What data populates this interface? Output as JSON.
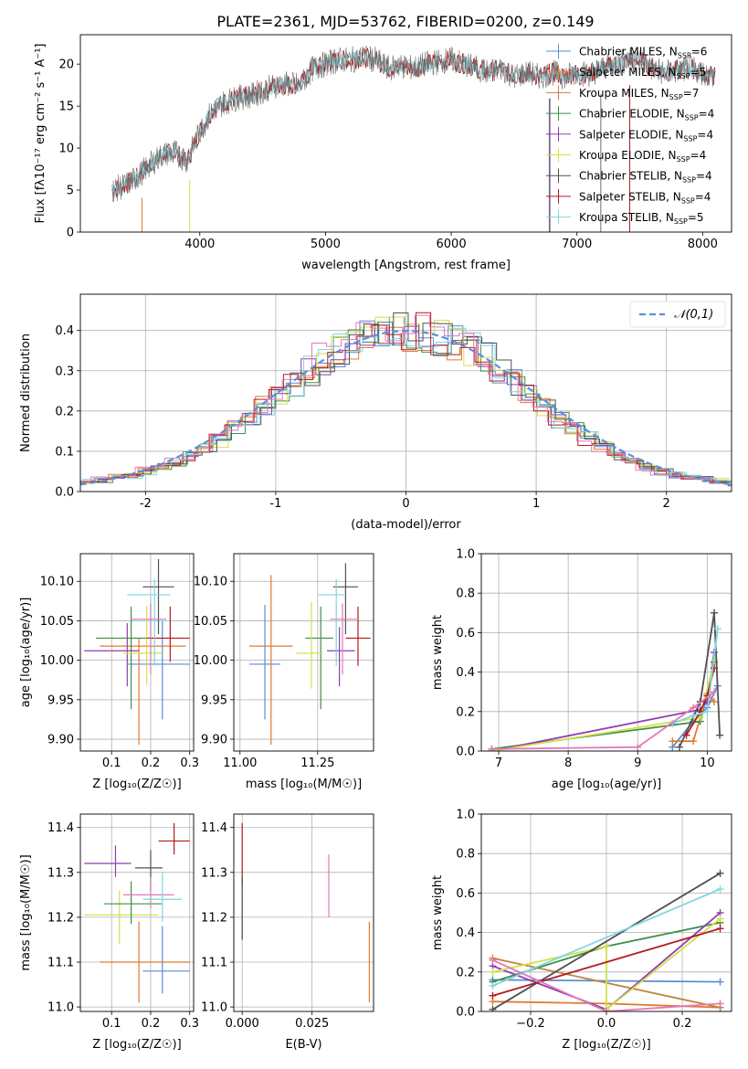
{
  "figure_title": "PLATE=2361, MJD=53762, FIBERID=0200, z=0.149",
  "models": [
    {
      "name": "Chabrier MILES",
      "nssp": "6",
      "color": "#5b8cd9"
    },
    {
      "name": "Salpeter MILES",
      "nssp": "5",
      "color": "#e07b30"
    },
    {
      "name": "Kroupa MILES",
      "nssp": "7",
      "color": "#c0833c"
    },
    {
      "name": "Chabrier ELODIE",
      "nssp": "4",
      "color": "#3e8e47"
    },
    {
      "name": "Salpeter ELODIE",
      "nssp": "4",
      "color": "#8e3db0"
    },
    {
      "name": "Kroupa ELODIE",
      "nssp": "4",
      "color": "#d6e048"
    },
    {
      "name": "Chabrier STELIB",
      "nssp": "4",
      "color": "#505050"
    },
    {
      "name": "Salpeter STELIB",
      "nssp": "4",
      "color": "#b01c20"
    },
    {
      "name": "Kroupa STELIB",
      "nssp": "5",
      "color": "#7fd6df"
    }
  ],
  "nssp_prefix": ", N",
  "nssp_sub": "SSP",
  "colors": {
    "spectrum": "#6f6f6f",
    "gaussian": "#5b8ee0",
    "pink": "#e07ab6",
    "grid": "#b0b0b0"
  },
  "chart_data": [
    {
      "id": "spectrum",
      "type": "line",
      "title": "PLATE=2361, MJD=53762, FIBERID=0200, z=0.149",
      "xlabel": "wavelength [Angstrom, rest frame]",
      "ylabel": "Flux [f$_\\lambda$10$^{-17}$ erg cm$^{-2}$ s$^{-1}$ A$^{-1}$]",
      "ylabel_display": "Flux [fλ10⁻¹⁷ erg cm⁻² s⁻¹ A⁻¹]",
      "xlim": [
        3050,
        8230
      ],
      "ylim": [
        0,
        23.5
      ],
      "xticks": [
        4000,
        5000,
        6000,
        7000,
        8000
      ],
      "yticks": [
        0,
        5,
        10,
        15,
        20
      ],
      "grid": false,
      "legend": "upper right",
      "spectrum_anchors": {
        "x": [
          3300,
          3400,
          3500,
          3600,
          3700,
          3800,
          3900,
          4000,
          4100,
          4200,
          4300,
          4400,
          4500,
          4600,
          4700,
          4800,
          4900,
          5000,
          5100,
          5200,
          5300,
          5400,
          5500,
          5600,
          5700,
          5800,
          5900,
          6000,
          6100,
          6200,
          6300,
          6400,
          6500,
          6600,
          6700,
          6800,
          6900,
          7000,
          7100,
          7200,
          7300,
          7400,
          7500,
          7600,
          7700,
          7800,
          7900,
          8000,
          8100
        ],
        "y": [
          5.0,
          5.5,
          6.5,
          8.0,
          9.2,
          9.5,
          8.5,
          12.0,
          14.5,
          15.5,
          16.0,
          16.2,
          16.8,
          17.5,
          17.6,
          17.5,
          19.5,
          20.0,
          20.5,
          20.5,
          20.8,
          20.5,
          19.5,
          19.8,
          19.5,
          20.0,
          20.3,
          20.5,
          20.0,
          19.5,
          19.0,
          19.5,
          18.5,
          19.0,
          18.5,
          19.0,
          18.5,
          19.0,
          18.8,
          19.5,
          20.0,
          20.5,
          20.5,
          19.5,
          19.0,
          19.2,
          19.5,
          19.0,
          18.5
        ]
      }
    },
    {
      "id": "residuals",
      "type": "histogram",
      "xlabel": "(data-model)/error",
      "ylabel": "Normed distribution",
      "xlim": [
        -2.5,
        2.5
      ],
      "ylim": [
        0,
        0.49
      ],
      "xticks": [
        -2,
        -1,
        0,
        1,
        2
      ],
      "yticks": [
        0.0,
        0.1,
        0.2,
        0.3,
        0.4
      ],
      "grid": true,
      "legend": "upper right",
      "legend_label": "𝒩(0,1)",
      "series_curve": "N(0,1) gaussian density",
      "hist_envelope": [
        0.02,
        0.025,
        0.03,
        0.035,
        0.04,
        0.05,
        0.06,
        0.075,
        0.09,
        0.11,
        0.13,
        0.155,
        0.18,
        0.21,
        0.24,
        0.27,
        0.3,
        0.33,
        0.35,
        0.37,
        0.385,
        0.395,
        0.4,
        0.4,
        0.395,
        0.385,
        0.37,
        0.35,
        0.33,
        0.3,
        0.27,
        0.24,
        0.21,
        0.18,
        0.155,
        0.13,
        0.11,
        0.09,
        0.075,
        0.06,
        0.05,
        0.04,
        0.035,
        0.03,
        0.025,
        0.02
      ]
    },
    {
      "id": "age_vs_Z",
      "type": "errorbar",
      "xlabel": "Z [log₁₀(Z/Z☉)]",
      "ylabel": "age  [log₁₀(age/yr)]",
      "xlim": [
        0.02,
        0.31
      ],
      "ylim": [
        9.885,
        10.135
      ],
      "xticks": [
        0.1,
        0.2,
        0.3
      ],
      "yticks": [
        9.9,
        9.95,
        10.0,
        10.05,
        10.1
      ],
      "grid": true,
      "points": [
        {
          "x": 0.23,
          "y": 9.995,
          "xerr": [
            0.09,
            0.07
          ],
          "yerr": [
            0.07,
            0.055
          ],
          "model": 0
        },
        {
          "x": 0.17,
          "y": 10.018,
          "xerr": [
            0.1,
            0.12
          ],
          "yerr": [
            0.125,
            0.01
          ],
          "model": 1
        },
        {
          "x": 0.2,
          "y": 10.05,
          "xerr": [
            0.05,
            0.05
          ],
          "yerr": [
            0.05,
            0.03
          ],
          "model": 8
        },
        {
          "x": 0.15,
          "y": 10.028,
          "xerr": [
            0.09,
            0.06
          ],
          "yerr": [
            0.09,
            0.04
          ],
          "model": 3
        },
        {
          "x": 0.14,
          "y": 10.012,
          "xerr": [
            0.11,
            0.03
          ],
          "yerr": [
            0.045,
            0.035
          ],
          "model": 4
        },
        {
          "x": 0.19,
          "y": 10.009,
          "xerr": [
            0.06,
            0.04
          ],
          "yerr": [
            0.04,
            0.06
          ],
          "model": 5
        },
        {
          "x": 0.22,
          "y": 10.093,
          "xerr": [
            0.04,
            0.04
          ],
          "yerr": [
            0.06,
            0.035
          ],
          "model": 6
        },
        {
          "x": 0.25,
          "y": 10.028,
          "xerr": [
            0.06,
            0.05
          ],
          "yerr": [
            0.03,
            0.04
          ],
          "model": 7
        },
        {
          "x": 0.21,
          "y": 10.083,
          "xerr": [
            0.07,
            0.04
          ],
          "yerr": [
            0.09,
            0.02
          ],
          "model": 8
        },
        {
          "x": 0.2,
          "y": 10.052,
          "xerr": [
            0.05,
            0.04
          ],
          "yerr": [
            0.07,
            0.02
          ],
          "model": 9
        }
      ]
    },
    {
      "id": "age_vs_mass",
      "type": "errorbar",
      "xlabel": "mass [log₁₀(M/M☉)]",
      "xlim": [
        10.98,
        11.43
      ],
      "ylim": [
        9.885,
        10.135
      ],
      "xticks": [
        11.0,
        11.25
      ],
      "xticklabels": [
        "11.00",
        "11.25"
      ],
      "yticks": [
        9.9,
        9.95,
        10.0,
        10.05,
        10.1
      ],
      "grid": true,
      "points": [
        {
          "x": 11.08,
          "y": 9.995,
          "xerr": [
            0.05,
            0.05
          ],
          "yerr": [
            0.07,
            0.075
          ],
          "model": 0
        },
        {
          "x": 11.1,
          "y": 10.018,
          "xerr": [
            0.07,
            0.07
          ],
          "yerr": [
            0.125,
            0.09
          ],
          "model": 1
        },
        {
          "x": 11.26,
          "y": 10.028,
          "xerr": [
            0.05,
            0.04
          ],
          "yerr": [
            0.09,
            0.04
          ],
          "model": 3
        },
        {
          "x": 11.32,
          "y": 10.012,
          "xerr": [
            0.04,
            0.05
          ],
          "yerr": [
            0.045,
            0.03
          ],
          "model": 4
        },
        {
          "x": 11.23,
          "y": 10.009,
          "xerr": [
            0.05,
            0.03
          ],
          "yerr": [
            0.045,
            0.065
          ],
          "model": 5
        },
        {
          "x": 11.34,
          "y": 10.093,
          "xerr": [
            0.04,
            0.04
          ],
          "yerr": [
            0.06,
            0.03
          ],
          "model": 6
        },
        {
          "x": 11.38,
          "y": 10.028,
          "xerr": [
            0.04,
            0.04
          ],
          "yerr": [
            0.035,
            0.04
          ],
          "model": 7
        },
        {
          "x": 11.31,
          "y": 10.083,
          "xerr": [
            0.06,
            0.03
          ],
          "yerr": [
            0.09,
            0.02
          ],
          "model": 8
        },
        {
          "x": 11.33,
          "y": 10.052,
          "xerr": [
            0.04,
            0.05
          ],
          "yerr": [
            0.07,
            0.02
          ],
          "model": 9
        }
      ]
    },
    {
      "id": "mass_weight_vs_age",
      "type": "line",
      "xlabel": "age  [log₁₀(age/yr)]",
      "ylabel": "mass weight",
      "xlim": [
        6.75,
        10.35
      ],
      "ylim": [
        0,
        1.0
      ],
      "xticks": [
        7,
        8,
        9,
        10
      ],
      "yticks": [
        0.0,
        0.2,
        0.4,
        0.6,
        0.8,
        1.0
      ],
      "grid": true,
      "series": [
        {
          "model": 0,
          "x": [
            9.5,
            9.8,
            10.0,
            10.15
          ],
          "y": [
            0.02,
            0.15,
            0.22,
            0.33
          ]
        },
        {
          "model": 1,
          "x": [
            9.5,
            9.8,
            10.0,
            10.1
          ],
          "y": [
            0.05,
            0.05,
            0.29,
            0.25
          ]
        },
        {
          "model": 3,
          "x": [
            6.9,
            9.9,
            10.1
          ],
          "y": [
            0.01,
            0.15,
            0.45
          ]
        },
        {
          "model": 4,
          "x": [
            6.9,
            9.9,
            10.0,
            10.1
          ],
          "y": [
            0.0,
            0.21,
            0.25,
            0.5
          ]
        },
        {
          "model": 5,
          "x": [
            6.9,
            9.9,
            10.1
          ],
          "y": [
            0.0,
            0.17,
            0.46
          ]
        },
        {
          "model": 6,
          "x": [
            9.6,
            9.9,
            10.1,
            10.18
          ],
          "y": [
            0.02,
            0.25,
            0.7,
            0.08
          ]
        },
        {
          "model": 7,
          "x": [
            9.7,
            9.9,
            10.0,
            10.1
          ],
          "y": [
            0.08,
            0.2,
            0.28,
            0.42
          ]
        },
        {
          "model": 8,
          "x": [
            9.5,
            9.8,
            10.0,
            10.15
          ],
          "y": [
            0.14,
            0.18,
            0.2,
            0.62
          ]
        },
        {
          "model": 9,
          "x": [
            6.9,
            9.0,
            9.8,
            10.1
          ],
          "y": [
            0.01,
            0.02,
            0.22,
            0.3
          ]
        }
      ]
    },
    {
      "id": "mass_vs_Z",
      "type": "errorbar",
      "xlabel": "Z [log₁₀(Z/Z☉)]",
      "ylabel": "mass [log₁₀(M/M☉)]",
      "xlim": [
        0.02,
        0.31
      ],
      "ylim": [
        10.99,
        11.43
      ],
      "xticks": [
        0.1,
        0.2,
        0.3
      ],
      "yticks": [
        11.0,
        11.1,
        11.2,
        11.3,
        11.4
      ],
      "grid": true,
      "points": [
        {
          "x": 0.23,
          "y": 11.08,
          "xerr": [
            0.05,
            0.07
          ],
          "yerr": [
            0.05,
            0.1
          ],
          "model": 0
        },
        {
          "x": 0.17,
          "y": 11.1,
          "xerr": [
            0.1,
            0.13
          ],
          "yerr": [
            0.09,
            0.09
          ],
          "model": 1
        },
        {
          "x": 0.12,
          "y": 11.205,
          "xerr": [
            0.09,
            0.1
          ],
          "yerr": [
            0.065,
            0.055
          ],
          "model": 5
        },
        {
          "x": 0.15,
          "y": 11.23,
          "xerr": [
            0.07,
            0.08
          ],
          "yerr": [
            0.045,
            0.05
          ],
          "model": 3
        },
        {
          "x": 0.11,
          "y": 11.32,
          "xerr": [
            0.08,
            0.04
          ],
          "yerr": [
            0.03,
            0.04
          ],
          "model": 4
        },
        {
          "x": 0.2,
          "y": 11.31,
          "xerr": [
            0.04,
            0.03
          ],
          "yerr": [
            0.05,
            0.04
          ],
          "model": 6
        },
        {
          "x": 0.26,
          "y": 11.37,
          "xerr": [
            0.04,
            0.04
          ],
          "yerr": [
            0.03,
            0.04
          ],
          "model": 7
        },
        {
          "x": 0.2,
          "y": 11.25,
          "xerr": [
            0.07,
            0.06
          ],
          "yerr": [
            0.03,
            0.04
          ],
          "model": 9
        },
        {
          "x": 0.23,
          "y": 11.24,
          "xerr": [
            0.05,
            0.05
          ],
          "yerr": [
            0.05,
            0.06
          ],
          "model": 8
        }
      ]
    },
    {
      "id": "mass_vs_ebv",
      "type": "errorbar",
      "xlabel": "E(B-V)",
      "xlim": [
        -0.003,
        0.047
      ],
      "ylim": [
        10.99,
        11.43
      ],
      "xticks": [
        0.0,
        0.025
      ],
      "xticklabels": [
        "0.000",
        "0.025"
      ],
      "yticks": [
        11.0,
        11.1,
        11.2,
        11.3,
        11.4
      ],
      "grid": true,
      "points": [
        {
          "x": 0.0,
          "y": 11.34,
          "yerr": [
            0.07,
            0.07
          ],
          "model": 7
        },
        {
          "x": 0.0,
          "y": 11.2,
          "yerr": [
            0.05,
            0.05
          ],
          "model": 8
        },
        {
          "x": 0.0,
          "y": 11.22,
          "yerr": [
            0.07,
            0.07
          ],
          "model": 6
        },
        {
          "x": 0.031,
          "y": 11.27,
          "yerr": [
            0.07,
            0.07
          ],
          "model": 9
        },
        {
          "x": 0.0455,
          "y": 11.1,
          "yerr": [
            0.09,
            0.09
          ],
          "model": 1
        }
      ]
    },
    {
      "id": "mass_weight_vs_Z",
      "type": "line",
      "xlabel": "Z [log₁₀(Z/Z☉)]",
      "ylabel": "mass weight",
      "xlim": [
        -0.33,
        0.33
      ],
      "ylim": [
        0,
        1.0
      ],
      "xticks": [
        -0.2,
        0.0,
        0.2
      ],
      "xticklabels": [
        "−0.2",
        "0.0",
        "0.2"
      ],
      "yticks": [
        0.0,
        0.2,
        0.4,
        0.6,
        0.8,
        1.0
      ],
      "grid": true,
      "series": [
        {
          "model": 0,
          "x": [
            -0.3,
            0.3
          ],
          "y": [
            0.16,
            0.15
          ]
        },
        {
          "model": 1,
          "x": [
            -0.3,
            0.0,
            0.3
          ],
          "y": [
            0.05,
            0.04,
            0.02
          ]
        },
        {
          "model": 2,
          "x": [
            -0.3,
            0.3
          ],
          "y": [
            0.27,
            0.02
          ]
        },
        {
          "model": 3,
          "x": [
            -0.3,
            0.0,
            0.3
          ],
          "y": [
            0.15,
            0.33,
            0.45
          ]
        },
        {
          "model": 4,
          "x": [
            -0.3,
            0.0,
            0.3
          ],
          "y": [
            0.23,
            0.01,
            0.5
          ]
        },
        {
          "model": 5,
          "x": [
            -0.3,
            0.0,
            0.0,
            0.3
          ],
          "y": [
            0.2,
            0.33,
            0.01,
            0.47
          ]
        },
        {
          "model": 6,
          "x": [
            -0.3,
            0.3
          ],
          "y": [
            0.01,
            0.7
          ]
        },
        {
          "model": 7,
          "x": [
            -0.3,
            0.3
          ],
          "y": [
            0.08,
            0.42
          ]
        },
        {
          "model": 8,
          "x": [
            -0.3,
            0.3
          ],
          "y": [
            0.13,
            0.62
          ]
        },
        {
          "model": 9,
          "x": [
            -0.3,
            0.0,
            0.3
          ],
          "y": [
            0.26,
            0.0,
            0.04
          ]
        }
      ]
    }
  ]
}
